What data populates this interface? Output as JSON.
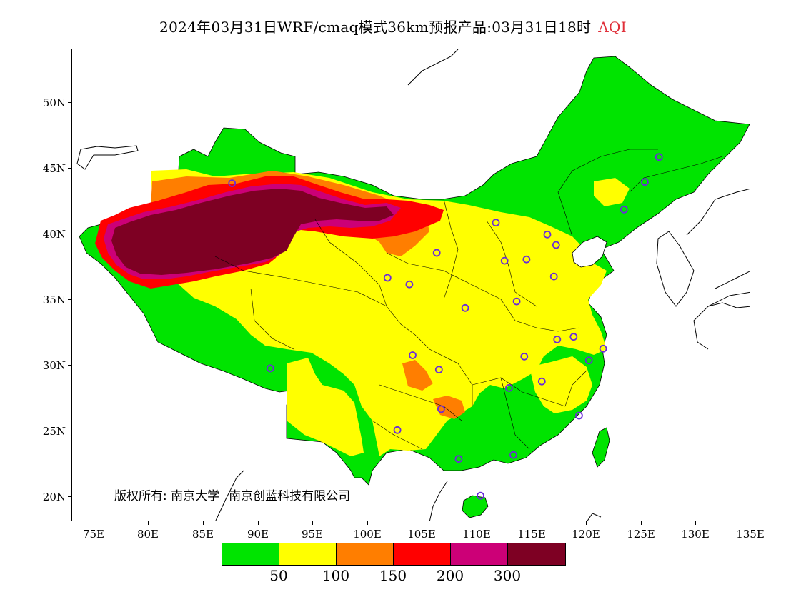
{
  "header": {
    "title": "2024年03月31日WRF/cmaq模式36km预报产品:03月31日18时",
    "product": "AQI"
  },
  "axes": {
    "lat_labels": [
      "50N",
      "45N",
      "40N",
      "35N",
      "30N",
      "25N",
      "20N"
    ],
    "lon_labels": [
      "75E",
      "80E",
      "85E",
      "90E",
      "95E",
      "100E",
      "105E",
      "110E",
      "115E",
      "120E",
      "125E",
      "130E",
      "135E"
    ],
    "lat_range": [
      18,
      54
    ],
    "lon_range": [
      73,
      135
    ]
  },
  "copyright": {
    "label": "版权所有:",
    "org1": "南京大学",
    "org2": "南京创蓝科技有限公司"
  },
  "legend": {
    "colors": [
      "#00e400",
      "#ffff00",
      "#ff7e00",
      "#ff0000",
      "#cc0077",
      "#7e0023"
    ],
    "labels": [
      "50",
      "100",
      "150",
      "200",
      "300"
    ]
  },
  "stations": [
    {
      "lon": 87.6,
      "lat": 43.8
    },
    {
      "lon": 91.1,
      "lat": 29.7
    },
    {
      "lon": 101.8,
      "lat": 36.6
    },
    {
      "lon": 103.8,
      "lat": 36.1
    },
    {
      "lon": 106.3,
      "lat": 38.5
    },
    {
      "lon": 111.7,
      "lat": 40.8
    },
    {
      "lon": 112.5,
      "lat": 37.9
    },
    {
      "lon": 114.5,
      "lat": 38.0
    },
    {
      "lon": 116.4,
      "lat": 39.9
    },
    {
      "lon": 117.2,
      "lat": 39.1
    },
    {
      "lon": 117.0,
      "lat": 36.7
    },
    {
      "lon": 113.6,
      "lat": 34.8
    },
    {
      "lon": 108.9,
      "lat": 34.3
    },
    {
      "lon": 117.3,
      "lat": 31.9
    },
    {
      "lon": 118.8,
      "lat": 32.1
    },
    {
      "lon": 120.2,
      "lat": 30.3
    },
    {
      "lon": 121.5,
      "lat": 31.2
    },
    {
      "lon": 114.3,
      "lat": 30.6
    },
    {
      "lon": 115.9,
      "lat": 28.7
    },
    {
      "lon": 112.9,
      "lat": 28.2
    },
    {
      "lon": 104.1,
      "lat": 30.7
    },
    {
      "lon": 106.5,
      "lat": 29.6
    },
    {
      "lon": 106.7,
      "lat": 26.6
    },
    {
      "lon": 102.7,
      "lat": 25.0
    },
    {
      "lon": 108.3,
      "lat": 22.8
    },
    {
      "lon": 113.3,
      "lat": 23.1
    },
    {
      "lon": 119.3,
      "lat": 26.1
    },
    {
      "lon": 110.3,
      "lat": 20.0
    },
    {
      "lon": 123.4,
      "lat": 41.8
    },
    {
      "lon": 125.3,
      "lat": 43.9
    },
    {
      "lon": 126.6,
      "lat": 45.8
    }
  ]
}
